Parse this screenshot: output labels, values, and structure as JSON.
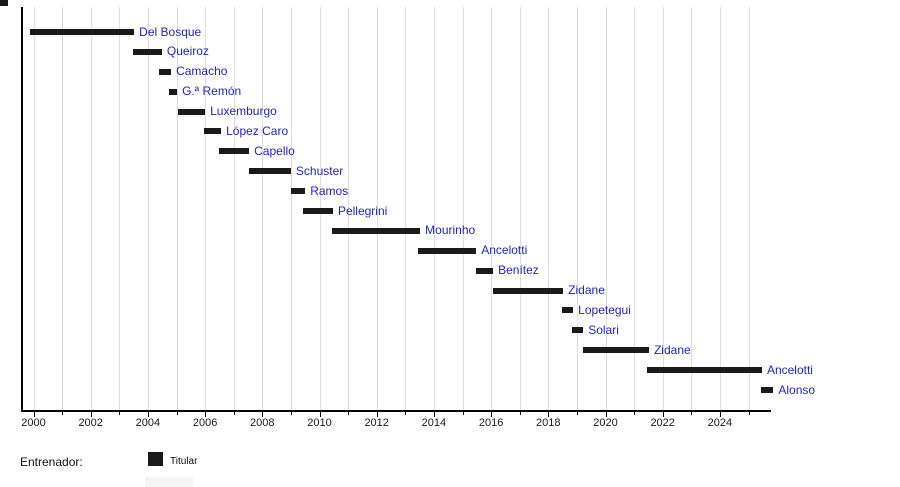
{
  "page": {
    "background": "#ffffff"
  },
  "legend": {
    "title": "Entrenador:",
    "items": [
      {
        "label": "Titular",
        "color": "#1a1a1a"
      }
    ]
  },
  "chart_data": {
    "type": "bar",
    "subtype": "gantt-timeline",
    "title": "",
    "xlabel": "",
    "ylabel": "",
    "legend_position": "bottom-left",
    "grid": "vertical-every-year",
    "bar_color": "#1a1a1a",
    "label_color": "#2222cc",
    "grid_color": "#dedede",
    "axis": {
      "x_min": 1999.6,
      "x_max": 2025.8,
      "major_tick_years": [
        2000,
        2002,
        2004,
        2006,
        2008,
        2010,
        2012,
        2014,
        2016,
        2018,
        2020,
        2022,
        2024
      ],
      "major_tick_labels": [
        "2000",
        "2002",
        "2004",
        "2006",
        "2008",
        "2010",
        "2012",
        "2014",
        "2016",
        "2018",
        "2020",
        "2022",
        "2024"
      ],
      "minor_tick_interval_years": 1,
      "gridline_years_start": 2000,
      "gridline_years_end": 2025
    },
    "entries": [
      {
        "label": "Del Bosque",
        "start": 1999.88,
        "end": 2003.52
      },
      {
        "label": "Queiroz",
        "start": 2003.48,
        "end": 2004.49
      },
      {
        "label": "Camacho",
        "start": 2004.4,
        "end": 2004.81
      },
      {
        "label": "G.ª Remón",
        "start": 2004.74,
        "end": 2005.02
      },
      {
        "label": "Luxemburgo",
        "start": 2005.05,
        "end": 2006.0
      },
      {
        "label": "López Caro",
        "start": 2005.96,
        "end": 2006.56
      },
      {
        "label": "Capello",
        "start": 2006.49,
        "end": 2007.54
      },
      {
        "label": "Schuster",
        "start": 2007.54,
        "end": 2009.0
      },
      {
        "label": "Ramos",
        "start": 2009.0,
        "end": 2009.5
      },
      {
        "label": "Pellegrini",
        "start": 2009.42,
        "end": 2010.47
      },
      {
        "label": "Mourinho",
        "start": 2010.44,
        "end": 2013.52
      },
      {
        "label": "Ancelotti",
        "start": 2013.45,
        "end": 2015.48
      },
      {
        "label": "Benítez",
        "start": 2015.48,
        "end": 2016.07
      },
      {
        "label": "Zidane",
        "start": 2016.07,
        "end": 2018.52
      },
      {
        "label": "Lopetegui",
        "start": 2018.48,
        "end": 2018.87
      },
      {
        "label": "Solari",
        "start": 2018.83,
        "end": 2019.22
      },
      {
        "label": "Zidane",
        "start": 2019.22,
        "end": 2021.52
      },
      {
        "label": "Ancelotti",
        "start": 2021.46,
        "end": 2025.47
      },
      {
        "label": "Alonso",
        "start": 2025.45,
        "end": 2025.87
      }
    ]
  }
}
